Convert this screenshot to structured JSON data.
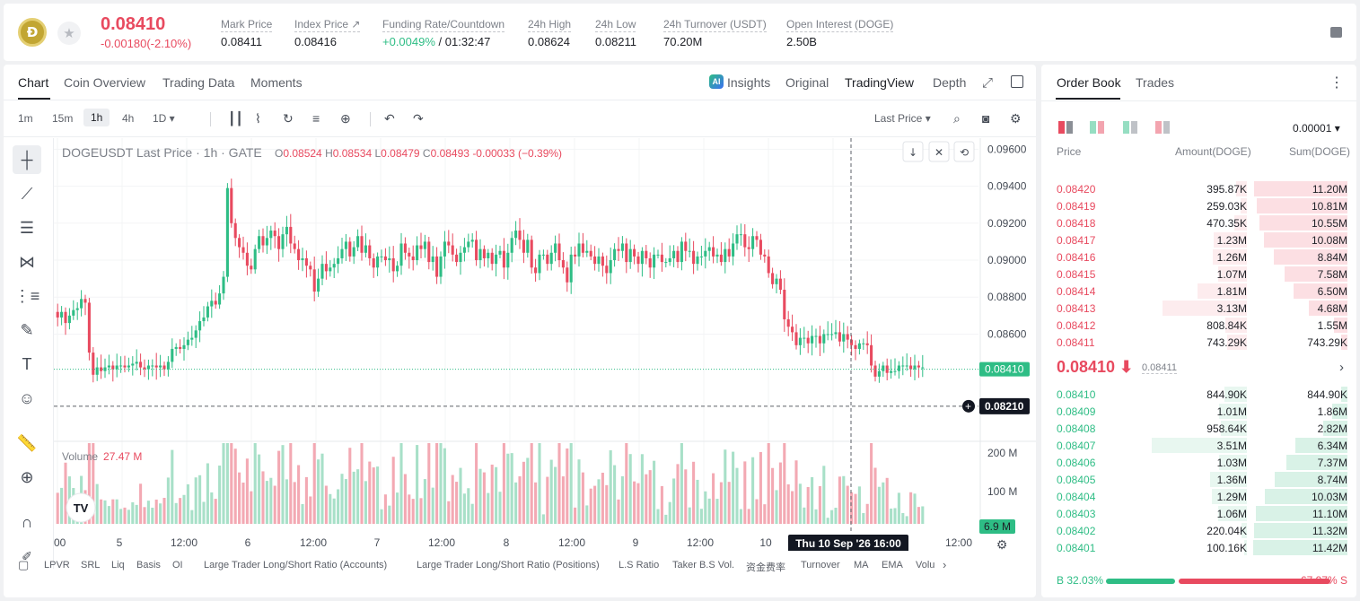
{
  "header": {
    "logo_text": "Ð",
    "last_price": "0.08410",
    "change": "-0.00180(-2.10%)",
    "stats": [
      {
        "label": "Mark Price",
        "value": "0.08411"
      },
      {
        "label": "Index Price ↗",
        "value": "0.08416"
      },
      {
        "label": "Funding Rate/Countdown",
        "value_green": "+0.0049%",
        "value": " / 01:32:47"
      },
      {
        "label": "24h High",
        "value": "0.08624"
      },
      {
        "label": "24h Low",
        "value": "0.08211"
      },
      {
        "label": "24h Turnover (USDT)",
        "value": "70.20M"
      },
      {
        "label": "Open Interest (DOGE)",
        "value": "2.50B"
      }
    ]
  },
  "chart_tabs": [
    "Chart",
    "Coin Overview",
    "Trading Data",
    "Moments"
  ],
  "view_tabs": [
    "Insights",
    "Original",
    "TradingView",
    "Depth"
  ],
  "ai_badge": "AI",
  "intervals": [
    "1m",
    "15m",
    "1h",
    "4h",
    "1D ▾"
  ],
  "price_type": "Last Price ▾",
  "chart_title": "DOGEUSDT Last Price · 1h · GATE",
  "ohlc": {
    "o": "O",
    "ov": "0.08524",
    "h": "H",
    "hv": "0.08534",
    "l": "L",
    "lv": "0.08479",
    "c": "C",
    "cv": "0.08493",
    "chg": "-0.00033 (−0.39%)"
  },
  "volume": {
    "label": "Volume",
    "value": "27.47 M"
  },
  "indicators": [
    "LPVR",
    "SRL",
    "Liq",
    "Basis",
    "OI",
    "Large Trader Long/Short Ratio (Accounts)",
    "Large Trader Long/Short Ratio (Positions)",
    "L.S Ratio",
    "Taker B.S Vol.",
    "资金费率",
    "Turnover",
    "MA",
    "EMA",
    "Volu"
  ],
  "chart_data": {
    "type": "candlestick",
    "title": "DOGEUSDT Last Price · 1h · GATE",
    "y_ticks": [
      "0.09600",
      "0.09400",
      "0.09200",
      "0.09000",
      "0.08800",
      "0.08600"
    ],
    "ylim": [
      0.0802,
      0.0966
    ],
    "vol_ticks": [
      "200 M",
      "100 M"
    ],
    "x_ticks": [
      "00",
      "5",
      "12:00",
      "6",
      "12:00",
      "7",
      "12:00",
      "8",
      "12:00",
      "9",
      "12:00",
      "10",
      "12:00"
    ],
    "current_price_label": "0.08410",
    "current_price": 0.0841,
    "crosshair_price_label": "0.08210",
    "crosshair_price": 0.0821,
    "crosshair_time": "Thu 10 Sep '26   16:00",
    "last_volume_label": "6.9 M",
    "closes": [
      0.0869,
      0.0872,
      0.0866,
      0.087,
      0.0873,
      0.0874,
      0.0879,
      0.0877,
      0.085,
      0.0838,
      0.0842,
      0.084,
      0.0842,
      0.0843,
      0.0841,
      0.0843,
      0.0843,
      0.0842,
      0.0843,
      0.0844,
      0.0845,
      0.0842,
      0.0841,
      0.0843,
      0.0843,
      0.0842,
      0.0843,
      0.0841,
      0.0845,
      0.0852,
      0.0853,
      0.0852,
      0.0854,
      0.0857,
      0.0858,
      0.0862,
      0.0867,
      0.0869,
      0.0875,
      0.0878,
      0.0876,
      0.0882,
      0.0891,
      0.0939,
      0.092,
      0.0912,
      0.0907,
      0.0904,
      0.0897,
      0.0895,
      0.0906,
      0.0913,
      0.0908,
      0.0912,
      0.0916,
      0.0913,
      0.0906,
      0.0914,
      0.0918,
      0.0909,
      0.0906,
      0.09,
      0.0901,
      0.0897,
      0.0895,
      0.0883,
      0.089,
      0.0898,
      0.0894,
      0.0896,
      0.0898,
      0.0901,
      0.0906,
      0.091,
      0.0902,
      0.0907,
      0.0913,
      0.0904,
      0.0908,
      0.0901,
      0.0896,
      0.0902,
      0.0902,
      0.09,
      0.0901,
      0.0894,
      0.0897,
      0.0909,
      0.0904,
      0.0902,
      0.09,
      0.0908,
      0.0906,
      0.091,
      0.0899,
      0.0902,
      0.0891,
      0.0902,
      0.091,
      0.0908,
      0.0903,
      0.0899,
      0.0904,
      0.0907,
      0.091,
      0.0911,
      0.09,
      0.0906,
      0.0901,
      0.0904,
      0.0898,
      0.0903,
      0.0905,
      0.0896,
      0.0904,
      0.0912,
      0.0916,
      0.0911,
      0.0904,
      0.0911,
      0.0896,
      0.0893,
      0.0903,
      0.0903,
      0.0898,
      0.0904,
      0.0909,
      0.09,
      0.0896,
      0.0888,
      0.0903,
      0.0902,
      0.0909,
      0.0904,
      0.0905,
      0.0902,
      0.0898,
      0.0902,
      0.0897,
      0.0893,
      0.09,
      0.0906,
      0.0905,
      0.0909,
      0.0899,
      0.0906,
      0.0902,
      0.0898,
      0.0905,
      0.0901,
      0.0896,
      0.0903,
      0.0903,
      0.0899,
      0.0899,
      0.0901,
      0.0905,
      0.0899,
      0.091,
      0.0905,
      0.0905,
      0.0898,
      0.0902,
      0.0902,
      0.0905,
      0.0907,
      0.0902,
      0.0903,
      0.0899,
      0.0906,
      0.0902,
      0.0909,
      0.0914,
      0.0914,
      0.0907,
      0.0906,
      0.0913,
      0.0911,
      0.0903,
      0.0902,
      0.0893,
      0.0887,
      0.089,
      0.0884,
      0.0868,
      0.0864,
      0.0861,
      0.0854,
      0.0858,
      0.0858,
      0.0855,
      0.0859,
      0.0859,
      0.0855,
      0.086,
      0.086,
      0.086,
      0.0861,
      0.0856,
      0.086,
      0.0857,
      0.0854,
      0.0852,
      0.0855,
      0.0855,
      0.0854,
      0.0843,
      0.0837,
      0.084,
      0.0843,
      0.0839,
      0.084,
      0.084,
      0.0843,
      0.0843,
      0.0843,
      0.0841,
      0.0843,
      0.0842,
      0.0842
    ]
  },
  "order_book": {
    "tabs": [
      "Order Book",
      "Trades"
    ],
    "tick": "0.00001 ▾",
    "headers": [
      "Price",
      "Amount(DOGE)",
      "Sum(DOGE)"
    ],
    "asks": [
      {
        "price": "0.08420",
        "amount": "395.87K",
        "sum": "11.20M",
        "amt_frac": 0.11,
        "sum_frac": 0.98
      },
      {
        "price": "0.08419",
        "amount": "259.03K",
        "sum": "10.81M",
        "amt_frac": 0.07,
        "sum_frac": 0.95
      },
      {
        "price": "0.08418",
        "amount": "470.35K",
        "sum": "10.55M",
        "amt_frac": 0.13,
        "sum_frac": 0.92
      },
      {
        "price": "0.08417",
        "amount": "1.23M",
        "sum": "10.08M",
        "amt_frac": 0.35,
        "sum_frac": 0.88
      },
      {
        "price": "0.08416",
        "amount": "1.26M",
        "sum": "8.84M",
        "amt_frac": 0.36,
        "sum_frac": 0.77
      },
      {
        "price": "0.08415",
        "amount": "1.07M",
        "sum": "7.58M",
        "amt_frac": 0.3,
        "sum_frac": 0.66
      },
      {
        "price": "0.08414",
        "amount": "1.81M",
        "sum": "6.50M",
        "amt_frac": 0.52,
        "sum_frac": 0.57
      },
      {
        "price": "0.08413",
        "amount": "3.13M",
        "sum": "4.68M",
        "amt_frac": 0.89,
        "sum_frac": 0.41
      },
      {
        "price": "0.08412",
        "amount": "808.84K",
        "sum": "1.55M",
        "amt_frac": 0.23,
        "sum_frac": 0.14
      },
      {
        "price": "0.08411",
        "amount": "743.29K",
        "sum": "743.29K",
        "amt_frac": 0.21,
        "sum_frac": 0.07
      }
    ],
    "mid_price": "0.08410 ⬇",
    "mid_mark": "0.08411",
    "bids": [
      {
        "price": "0.08410",
        "amount": "844.90K",
        "sum": "844.90K",
        "amt_frac": 0.24,
        "sum_frac": 0.07
      },
      {
        "price": "0.08409",
        "amount": "1.01M",
        "sum": "1.86M",
        "amt_frac": 0.29,
        "sum_frac": 0.16
      },
      {
        "price": "0.08408",
        "amount": "958.64K",
        "sum": "2.82M",
        "amt_frac": 0.27,
        "sum_frac": 0.25
      },
      {
        "price": "0.08407",
        "amount": "3.51M",
        "sum": "6.34M",
        "amt_frac": 1.0,
        "sum_frac": 0.55
      },
      {
        "price": "0.08406",
        "amount": "1.03M",
        "sum": "7.37M",
        "amt_frac": 0.29,
        "sum_frac": 0.64
      },
      {
        "price": "0.08405",
        "amount": "1.36M",
        "sum": "8.74M",
        "amt_frac": 0.39,
        "sum_frac": 0.76
      },
      {
        "price": "0.08404",
        "amount": "1.29M",
        "sum": "10.03M",
        "amt_frac": 0.37,
        "sum_frac": 0.87
      },
      {
        "price": "0.08403",
        "amount": "1.06M",
        "sum": "11.10M",
        "amt_frac": 0.3,
        "sum_frac": 0.96
      },
      {
        "price": "0.08402",
        "amount": "220.04K",
        "sum": "11.32M",
        "amt_frac": 0.06,
        "sum_frac": 0.98
      },
      {
        "price": "0.08401",
        "amount": "100.16K",
        "sum": "11.42M",
        "amt_frac": 0.03,
        "sum_frac": 0.99
      }
    ],
    "buy_label": "B 32.03%",
    "sell_label": "67.97% S",
    "buy_frac": 0.3203
  },
  "colors": {
    "up": "#2ebd85",
    "down": "#e84a5f",
    "up_light": "#e8f7f0",
    "down_light": "#fdecee"
  }
}
